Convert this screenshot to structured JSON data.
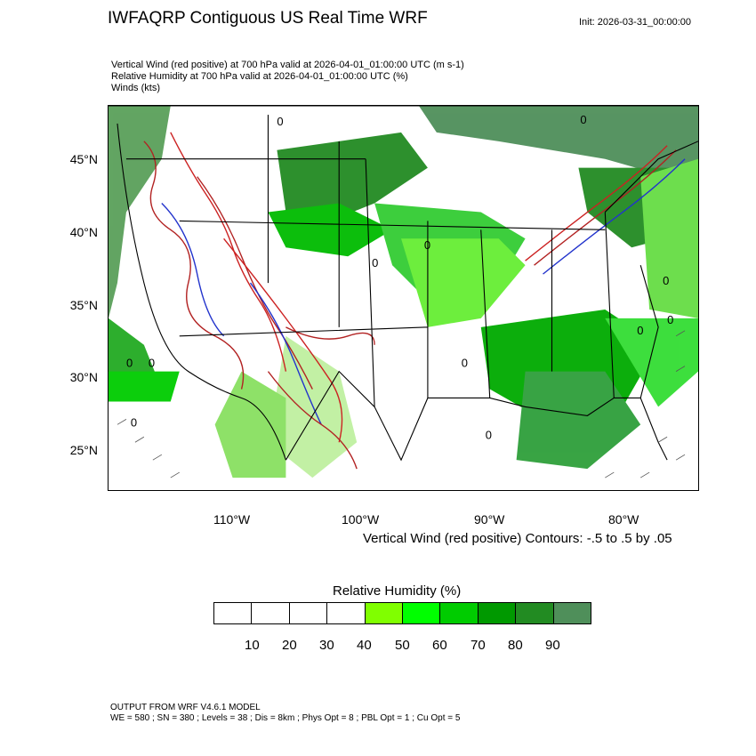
{
  "title": "IWFAQRP Contiguous US Real Time WRF",
  "init": "Init: 2026-03-31_00:00:00",
  "subtitle_lines": [
    "Vertical Wind (red positive) at 700 hPa valid at 2026-04-01_01:00:00 UTC   (m s-1)",
    "Relative Humidity at 700 hPa valid at 2026-04-01_01:00:00 UTC   (%)",
    "Winds   (kts)"
  ],
  "lat_labels": [
    "45°N",
    "40°N",
    "35°N",
    "30°N",
    "25°N"
  ],
  "lon_labels": [
    "110°W",
    "100°W",
    "90°W",
    "80°W"
  ],
  "contour_note": "Vertical Wind (red positive) Contours: -.5 to .5 by .05",
  "colorbar": {
    "title": "Relative Humidity  (%)",
    "labels": [
      "10",
      "20",
      "30",
      "40",
      "50",
      "60",
      "70",
      "80",
      "90"
    ],
    "colors": [
      "#ffffff",
      "#ffffff",
      "#ffffff",
      "#ffffff",
      "#80ff00",
      "#00ff00",
      "#00cc00",
      "#009900",
      "#228b22",
      "#4f8f5a"
    ]
  },
  "contour_label": "0",
  "footer": [
    "OUTPUT FROM WRF V4.6.1 MODEL",
    "WE = 580 ; SN = 380 ; Levels = 38 ; Dis = 8km ; Phys Opt = 8 ; PBL Opt = 1 ; Cu Opt = 5"
  ]
}
